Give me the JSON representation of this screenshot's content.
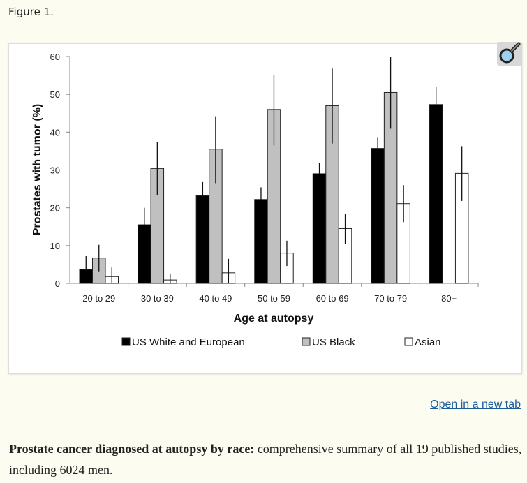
{
  "figure_label": "Figure 1.",
  "open_link": "Open in a new tab",
  "caption": {
    "bold": "Prostate cancer diagnosed at autopsy by race:",
    "text": " comprehensive summary of all 19 published studies, including 6024 men."
  },
  "zoom_icon": "magnifier-icon",
  "chart_data": {
    "type": "bar",
    "title": "",
    "xlabel": "Age at autopsy",
    "ylabel": "Prostates with tumor (%)",
    "ylim": [
      0,
      60
    ],
    "yticks": [
      0,
      10,
      20,
      30,
      40,
      50,
      60
    ],
    "grid": false,
    "legend_position": "bottom",
    "categories": [
      "20 to 29",
      "30 to 39",
      "40 to 49",
      "50 to 59",
      "60 to 69",
      "70 to 79",
      "80+"
    ],
    "series": [
      {
        "name": "US White and European",
        "color": "#000000",
        "values": [
          3.7,
          15.5,
          23.2,
          22.2,
          29.0,
          35.7,
          47.3
        ],
        "err_low": [
          null,
          null,
          null,
          null,
          null,
          null,
          null
        ],
        "err_high": [
          7.2,
          20.0,
          26.8,
          25.4,
          31.9,
          38.7,
          52.0
        ]
      },
      {
        "name": "US Black",
        "color": "#c0c0c0",
        "values": [
          6.7,
          30.4,
          35.5,
          46.0,
          47.0,
          50.5,
          null
        ],
        "err_low": [
          3.2,
          23.3,
          26.5,
          36.5,
          37.0,
          40.9,
          null
        ],
        "err_high": [
          10.2,
          37.3,
          44.2,
          55.2,
          56.8,
          59.9,
          null
        ]
      },
      {
        "name": "Asian",
        "color": "#ffffff",
        "values": [
          1.8,
          0.9,
          2.8,
          8.0,
          14.5,
          21.1,
          29.1
        ],
        "err_low": [
          0,
          0,
          0,
          4.6,
          10.5,
          16.2,
          21.8
        ],
        "err_high": [
          4.2,
          2.6,
          6.5,
          11.3,
          18.4,
          26.0,
          36.3
        ]
      }
    ]
  }
}
